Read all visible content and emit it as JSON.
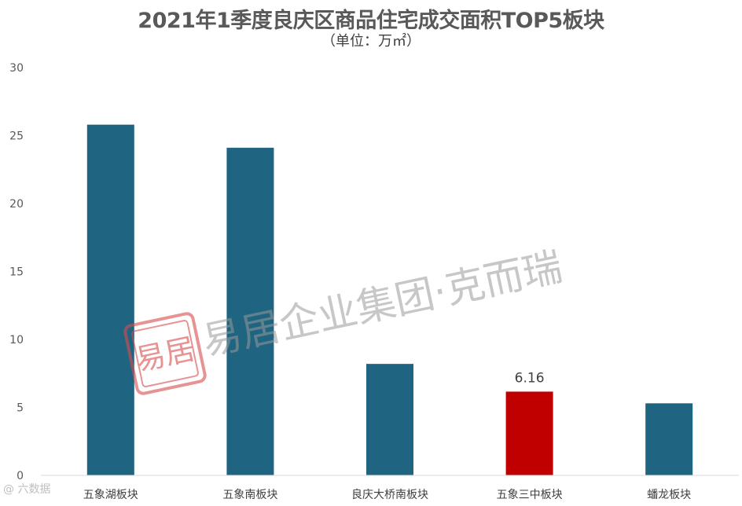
{
  "title": "2021年1季度良庆区商品住宅成交面积TOP5板块",
  "subtitle": "（单位：万㎡）",
  "colors": {
    "bar": "#1f6480",
    "highlight": "#c00000",
    "axis": "#d9d9d9"
  },
  "watermark": {
    "seal_text": "易居",
    "text": "易居企业集团·克而瑞"
  },
  "corner_mark": "@ 六数据",
  "chart_data": {
    "type": "bar",
    "title": "2021年1季度良庆区商品住宅成交面积TOP5板块",
    "subtitle": "（单位：万㎡）",
    "categories": [
      "五象湖板块",
      "五象南板块",
      "良庆大桥南板块",
      "五象三中板块",
      "蟠龙板块"
    ],
    "values": [
      25.8,
      24.1,
      8.2,
      6.16,
      5.3
    ],
    "highlight_index": 3,
    "data_labels": [
      null,
      null,
      null,
      "6.16",
      null
    ],
    "ylim": [
      0,
      30
    ],
    "yticks": [
      0,
      5,
      10,
      15,
      20,
      25,
      30
    ],
    "xlabel": "",
    "ylabel": "",
    "grid": false,
    "legend": "none"
  }
}
